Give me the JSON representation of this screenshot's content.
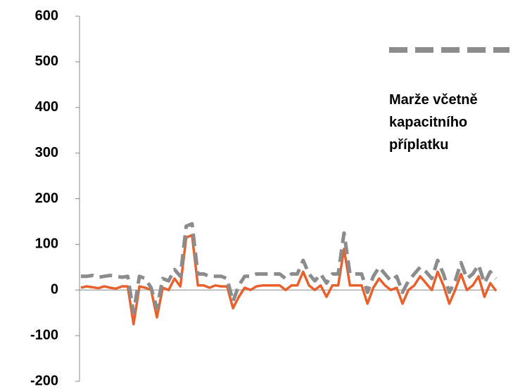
{
  "chart_data": {
    "type": "line",
    "categories": [
      null,
      null,
      null,
      null,
      null,
      null,
      null,
      null,
      null,
      null,
      null,
      null,
      null,
      null,
      null,
      null,
      null,
      null,
      null,
      null,
      null,
      null,
      null,
      null,
      null,
      null,
      null,
      null,
      null,
      null,
      null,
      null,
      null,
      null,
      null,
      null,
      null,
      null,
      null,
      null,
      null,
      null,
      null,
      null,
      null,
      null,
      null,
      null,
      null,
      null,
      null,
      null,
      null,
      null,
      null,
      null,
      null,
      null,
      null,
      null,
      null,
      null,
      null,
      null,
      null,
      null,
      null,
      null,
      null,
      null,
      null,
      null
    ],
    "series": [
      {
        "color": "#e8602c",
        "style": "solid",
        "values": [
          5,
          8,
          6,
          4,
          8,
          5,
          3,
          8,
          8,
          -75,
          8,
          5,
          0,
          -60,
          5,
          0,
          25,
          8,
          115,
          120,
          10,
          10,
          5,
          10,
          8,
          8,
          -40,
          -15,
          5,
          0,
          8,
          10,
          10,
          10,
          10,
          0,
          10,
          10,
          40,
          10,
          0,
          10,
          -15,
          10,
          10,
          90,
          10,
          10,
          10,
          -30,
          5,
          25,
          10,
          0,
          5,
          -30,
          0,
          10,
          30,
          15,
          0,
          40,
          10,
          -30,
          0,
          35,
          0,
          10,
          30,
          -15,
          15,
          -2
        ]
      },
      {
        "name": "Marže včetně kapacitního příplatku",
        "color": "#8c8c8c",
        "style": "dashed",
        "values": [
          30,
          30,
          32,
          28,
          30,
          32,
          30,
          28,
          30,
          -50,
          30,
          25,
          5,
          -40,
          25,
          20,
          45,
          30,
          140,
          145,
          35,
          35,
          30,
          30,
          30,
          25,
          -25,
          10,
          30,
          30,
          35,
          35,
          35,
          35,
          35,
          25,
          35,
          35,
          65,
          35,
          20,
          35,
          15,
          35,
          35,
          125,
          35,
          35,
          35,
          -5,
          30,
          50,
          35,
          20,
          30,
          -5,
          20,
          35,
          50,
          40,
          25,
          65,
          35,
          -5,
          20,
          60,
          25,
          35,
          55,
          15,
          40,
          25
        ]
      }
    ],
    "ylim": [
      -200,
      600
    ],
    "yticks": [
      -200,
      -100,
      0,
      100,
      200,
      300,
      400,
      500,
      600
    ],
    "legend": "right"
  }
}
